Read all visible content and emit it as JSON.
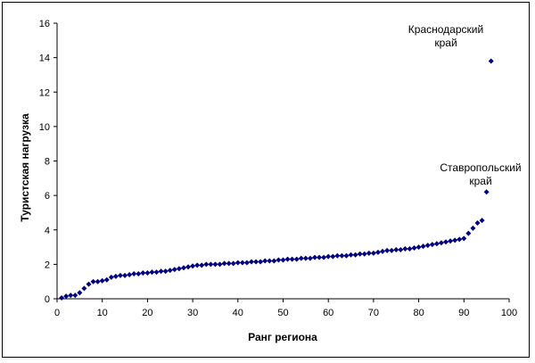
{
  "chart_data": {
    "type": "scatter",
    "title": "",
    "xlabel": "Ранг региона",
    "ylabel": "Туристская нагрузка",
    "xlim": [
      0,
      100
    ],
    "ylim": [
      0,
      16
    ],
    "xticks": [
      0,
      10,
      20,
      30,
      40,
      50,
      60,
      70,
      80,
      90,
      100
    ],
    "yticks": [
      0,
      2,
      4,
      6,
      8,
      10,
      12,
      14,
      16
    ],
    "grid": false,
    "legend": "none",
    "marker_color": "#000080",
    "x": [
      1,
      2,
      3,
      4,
      5,
      6,
      7,
      8,
      9,
      10,
      11,
      12,
      13,
      14,
      15,
      16,
      17,
      18,
      19,
      20,
      21,
      22,
      23,
      24,
      25,
      26,
      27,
      28,
      29,
      30,
      31,
      32,
      33,
      34,
      35,
      36,
      37,
      38,
      39,
      40,
      41,
      42,
      43,
      44,
      45,
      46,
      47,
      48,
      49,
      50,
      51,
      52,
      53,
      54,
      55,
      56,
      57,
      58,
      59,
      60,
      61,
      62,
      63,
      64,
      65,
      66,
      67,
      68,
      69,
      70,
      71,
      72,
      73,
      74,
      75,
      76,
      77,
      78,
      79,
      80,
      81,
      82,
      83,
      84,
      85,
      86,
      87,
      88,
      89,
      90,
      91,
      92,
      93,
      94,
      95,
      96
    ],
    "y": [
      0.05,
      0.15,
      0.2,
      0.2,
      0.35,
      0.6,
      0.85,
      1.0,
      1.0,
      1.05,
      1.1,
      1.25,
      1.3,
      1.35,
      1.35,
      1.4,
      1.45,
      1.45,
      1.5,
      1.5,
      1.55,
      1.55,
      1.6,
      1.6,
      1.65,
      1.7,
      1.75,
      1.8,
      1.85,
      1.9,
      1.95,
      1.95,
      2.0,
      2.0,
      2.0,
      2.0,
      2.05,
      2.05,
      2.05,
      2.1,
      2.1,
      2.1,
      2.15,
      2.15,
      2.15,
      2.2,
      2.2,
      2.2,
      2.25,
      2.25,
      2.3,
      2.3,
      2.3,
      2.35,
      2.35,
      2.35,
      2.4,
      2.4,
      2.4,
      2.45,
      2.45,
      2.5,
      2.5,
      2.5,
      2.55,
      2.55,
      2.6,
      2.6,
      2.65,
      2.65,
      2.7,
      2.75,
      2.8,
      2.8,
      2.85,
      2.85,
      2.9,
      2.9,
      2.95,
      3.0,
      3.05,
      3.1,
      3.15,
      3.2,
      3.25,
      3.3,
      3.35,
      3.4,
      3.45,
      3.5,
      3.8,
      4.1,
      4.4,
      4.55,
      6.2,
      13.8
    ],
    "annotations": [
      {
        "label_line1": "Краснодарский",
        "label_line2": "край",
        "x": 96,
        "y": 13.8
      },
      {
        "label_line1": "Ставропольский",
        "label_line2": "край",
        "x": 95,
        "y": 6.2
      }
    ]
  }
}
